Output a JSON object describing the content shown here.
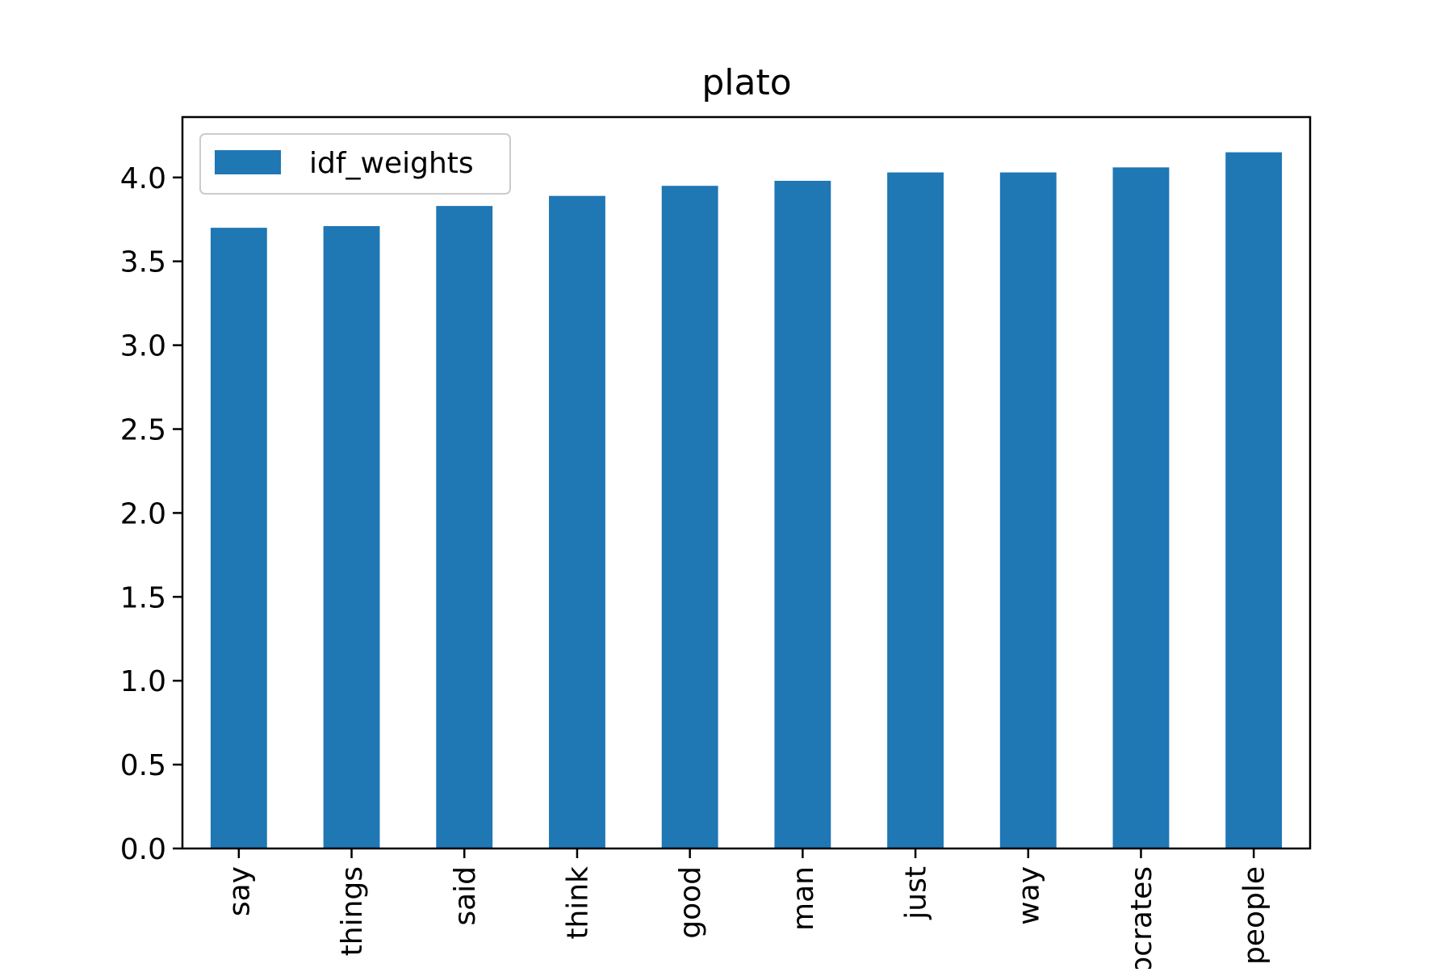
{
  "chart_data": {
    "type": "bar",
    "title": "plato",
    "categories": [
      "say",
      "things",
      "said",
      "think",
      "good",
      "man",
      "just",
      "way",
      "socrates",
      "people"
    ],
    "series": [
      {
        "name": "idf_weights",
        "values": [
          3.7,
          3.71,
          3.83,
          3.89,
          3.95,
          3.98,
          4.03,
          4.03,
          4.06,
          4.15
        ]
      }
    ],
    "xlabel": "",
    "ylabel": "",
    "ylim": [
      0,
      4.36
    ],
    "yticks": [
      "0.0",
      "0.5",
      "1.0",
      "1.5",
      "2.0",
      "2.5",
      "3.0",
      "3.5",
      "4.0"
    ],
    "legend": {
      "placement": "upper-left"
    },
    "grid": false,
    "colors": {
      "bar": "#1f77b4",
      "axis": "#000000",
      "legend_border": "#cccccc",
      "background": "#ffffff"
    }
  }
}
